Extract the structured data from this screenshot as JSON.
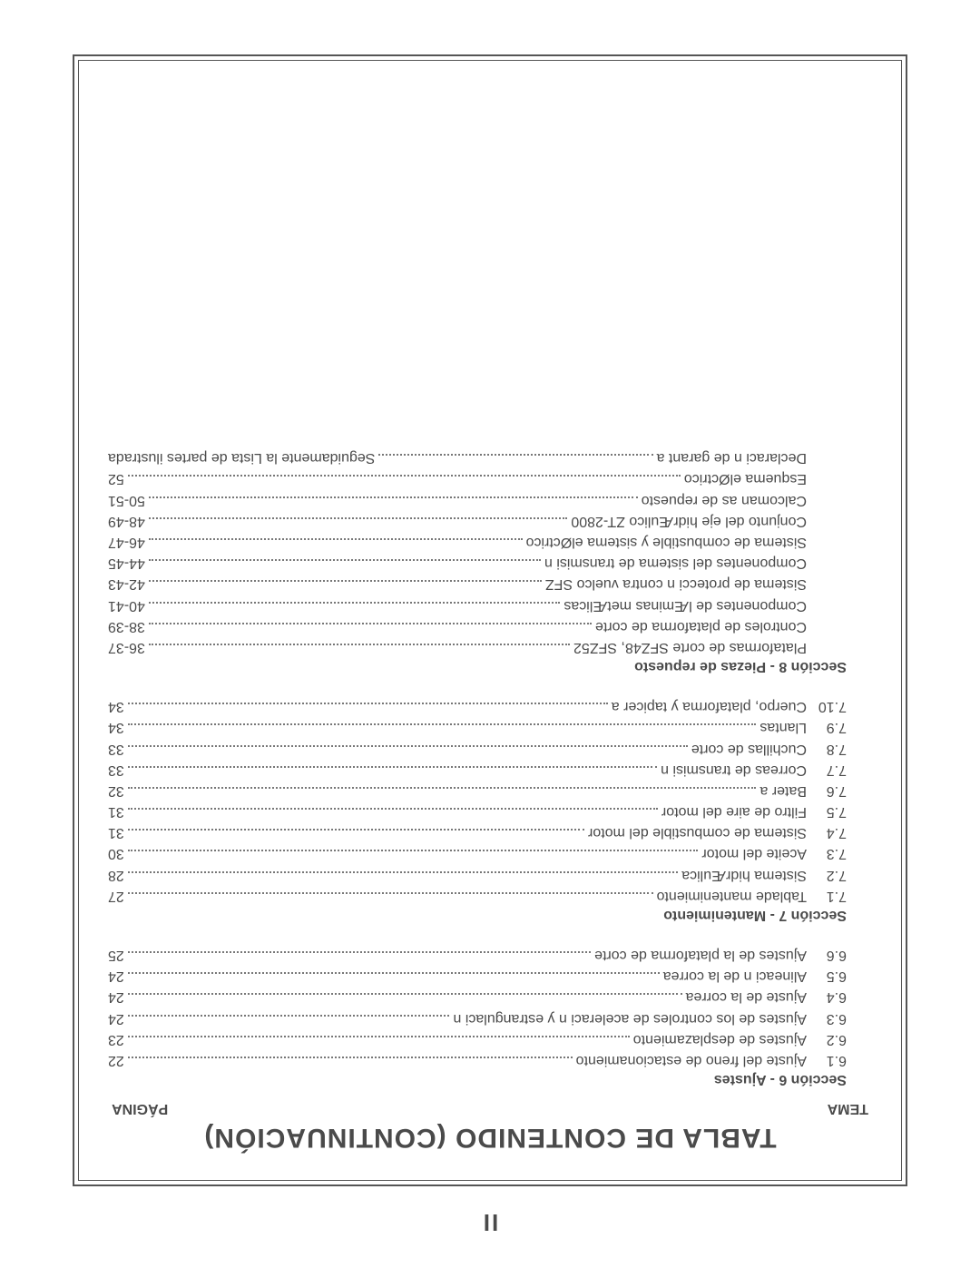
{
  "page_number": "II",
  "title": "TABLA DE CONTENIDO (CONTINUACIÓN)",
  "col_left": "TEMA",
  "col_right": "PÁGINA",
  "colors": {
    "text": "#4a4a4a",
    "border": "#555555",
    "background": "#ffffff",
    "dots": "#777777"
  },
  "typography": {
    "title_fontsize": 30,
    "heading_fontsize": 16,
    "body_fontsize": 16,
    "font_family": "Arial"
  },
  "sections": [
    {
      "heading": "Sección 6 - Ajustes",
      "entries": [
        {
          "n": "6.1",
          "label": "Ajuste del freno de estacionamiento",
          "page": "22"
        },
        {
          "n": "6.2",
          "label": "Ajustes de desplazamiento",
          "page": "23"
        },
        {
          "n": "6.3",
          "label": "Ajustes de los controles de aceleraci n y estrangulaci n",
          "page": "24"
        },
        {
          "n": "6.4",
          "label": "Ajuste de la correa",
          "page": "24"
        },
        {
          "n": "6.5",
          "label": "Alineaci n de la correa",
          "page": "24"
        },
        {
          "n": "6.6",
          "label": "Ajustes de la plataforma de corte",
          "page": "25"
        }
      ]
    },
    {
      "heading": "Sección 7 - Mantenimiento",
      "entries": [
        {
          "n": "7.1",
          "label": "Tablade mantenimiento",
          "page": "27"
        },
        {
          "n": "7.2",
          "label": "Sistema hidrÆulica",
          "page": "28"
        },
        {
          "n": "7.3",
          "label": "Aceite del motor",
          "page": "30"
        },
        {
          "n": "7.4",
          "label": "Sistema de combustible del motor",
          "page": "31"
        },
        {
          "n": "7.5",
          "label": "Filtro de aire del motor",
          "page": "31"
        },
        {
          "n": "7.6",
          "label": "Bater a",
          "page": "32"
        },
        {
          "n": "7.7",
          "label": "Correas de transmisi n",
          "page": "33"
        },
        {
          "n": "7.8",
          "label": "Cuchillas de corte",
          "page": "33"
        },
        {
          "n": "7.9",
          "label": "Llantas",
          "page": "34"
        },
        {
          "n": "7.10",
          "label": "Cuerpo, plataforma y tapicer a",
          "page": "34"
        }
      ]
    },
    {
      "heading": "Sección 8 - Piezas de repuesto",
      "entries": [
        {
          "n": "",
          "label": "Plataformas de corte SFZ48, SFZ52",
          "page": "36-37"
        },
        {
          "n": "",
          "label": "Controles de plataforma de corte",
          "page": "38-39"
        },
        {
          "n": "",
          "label": "Componentes de lÆminas metÆlicas",
          "page": "40-41"
        },
        {
          "n": "",
          "label": "Sistema de protecci n contra vuelco SFZ",
          "page": "42-43"
        },
        {
          "n": "",
          "label": "Componentes del sistema de transmisi n",
          "page": "44-45"
        },
        {
          "n": "",
          "label": "Sistema de combustible y sistema elØctrico",
          "page": "46-47"
        },
        {
          "n": "",
          "label": "Conjunto del eje hidrÆulico ZT-2800",
          "page": "48-49"
        },
        {
          "n": "",
          "label": "Calcoman as de repuesto",
          "page": "50-51"
        },
        {
          "n": "",
          "label": "Esquema elØctrico",
          "page": "52"
        },
        {
          "n": "",
          "label": "Declaraci n de garant a",
          "page": "Seguidamente la Lista de partes ilustrada"
        }
      ]
    }
  ]
}
